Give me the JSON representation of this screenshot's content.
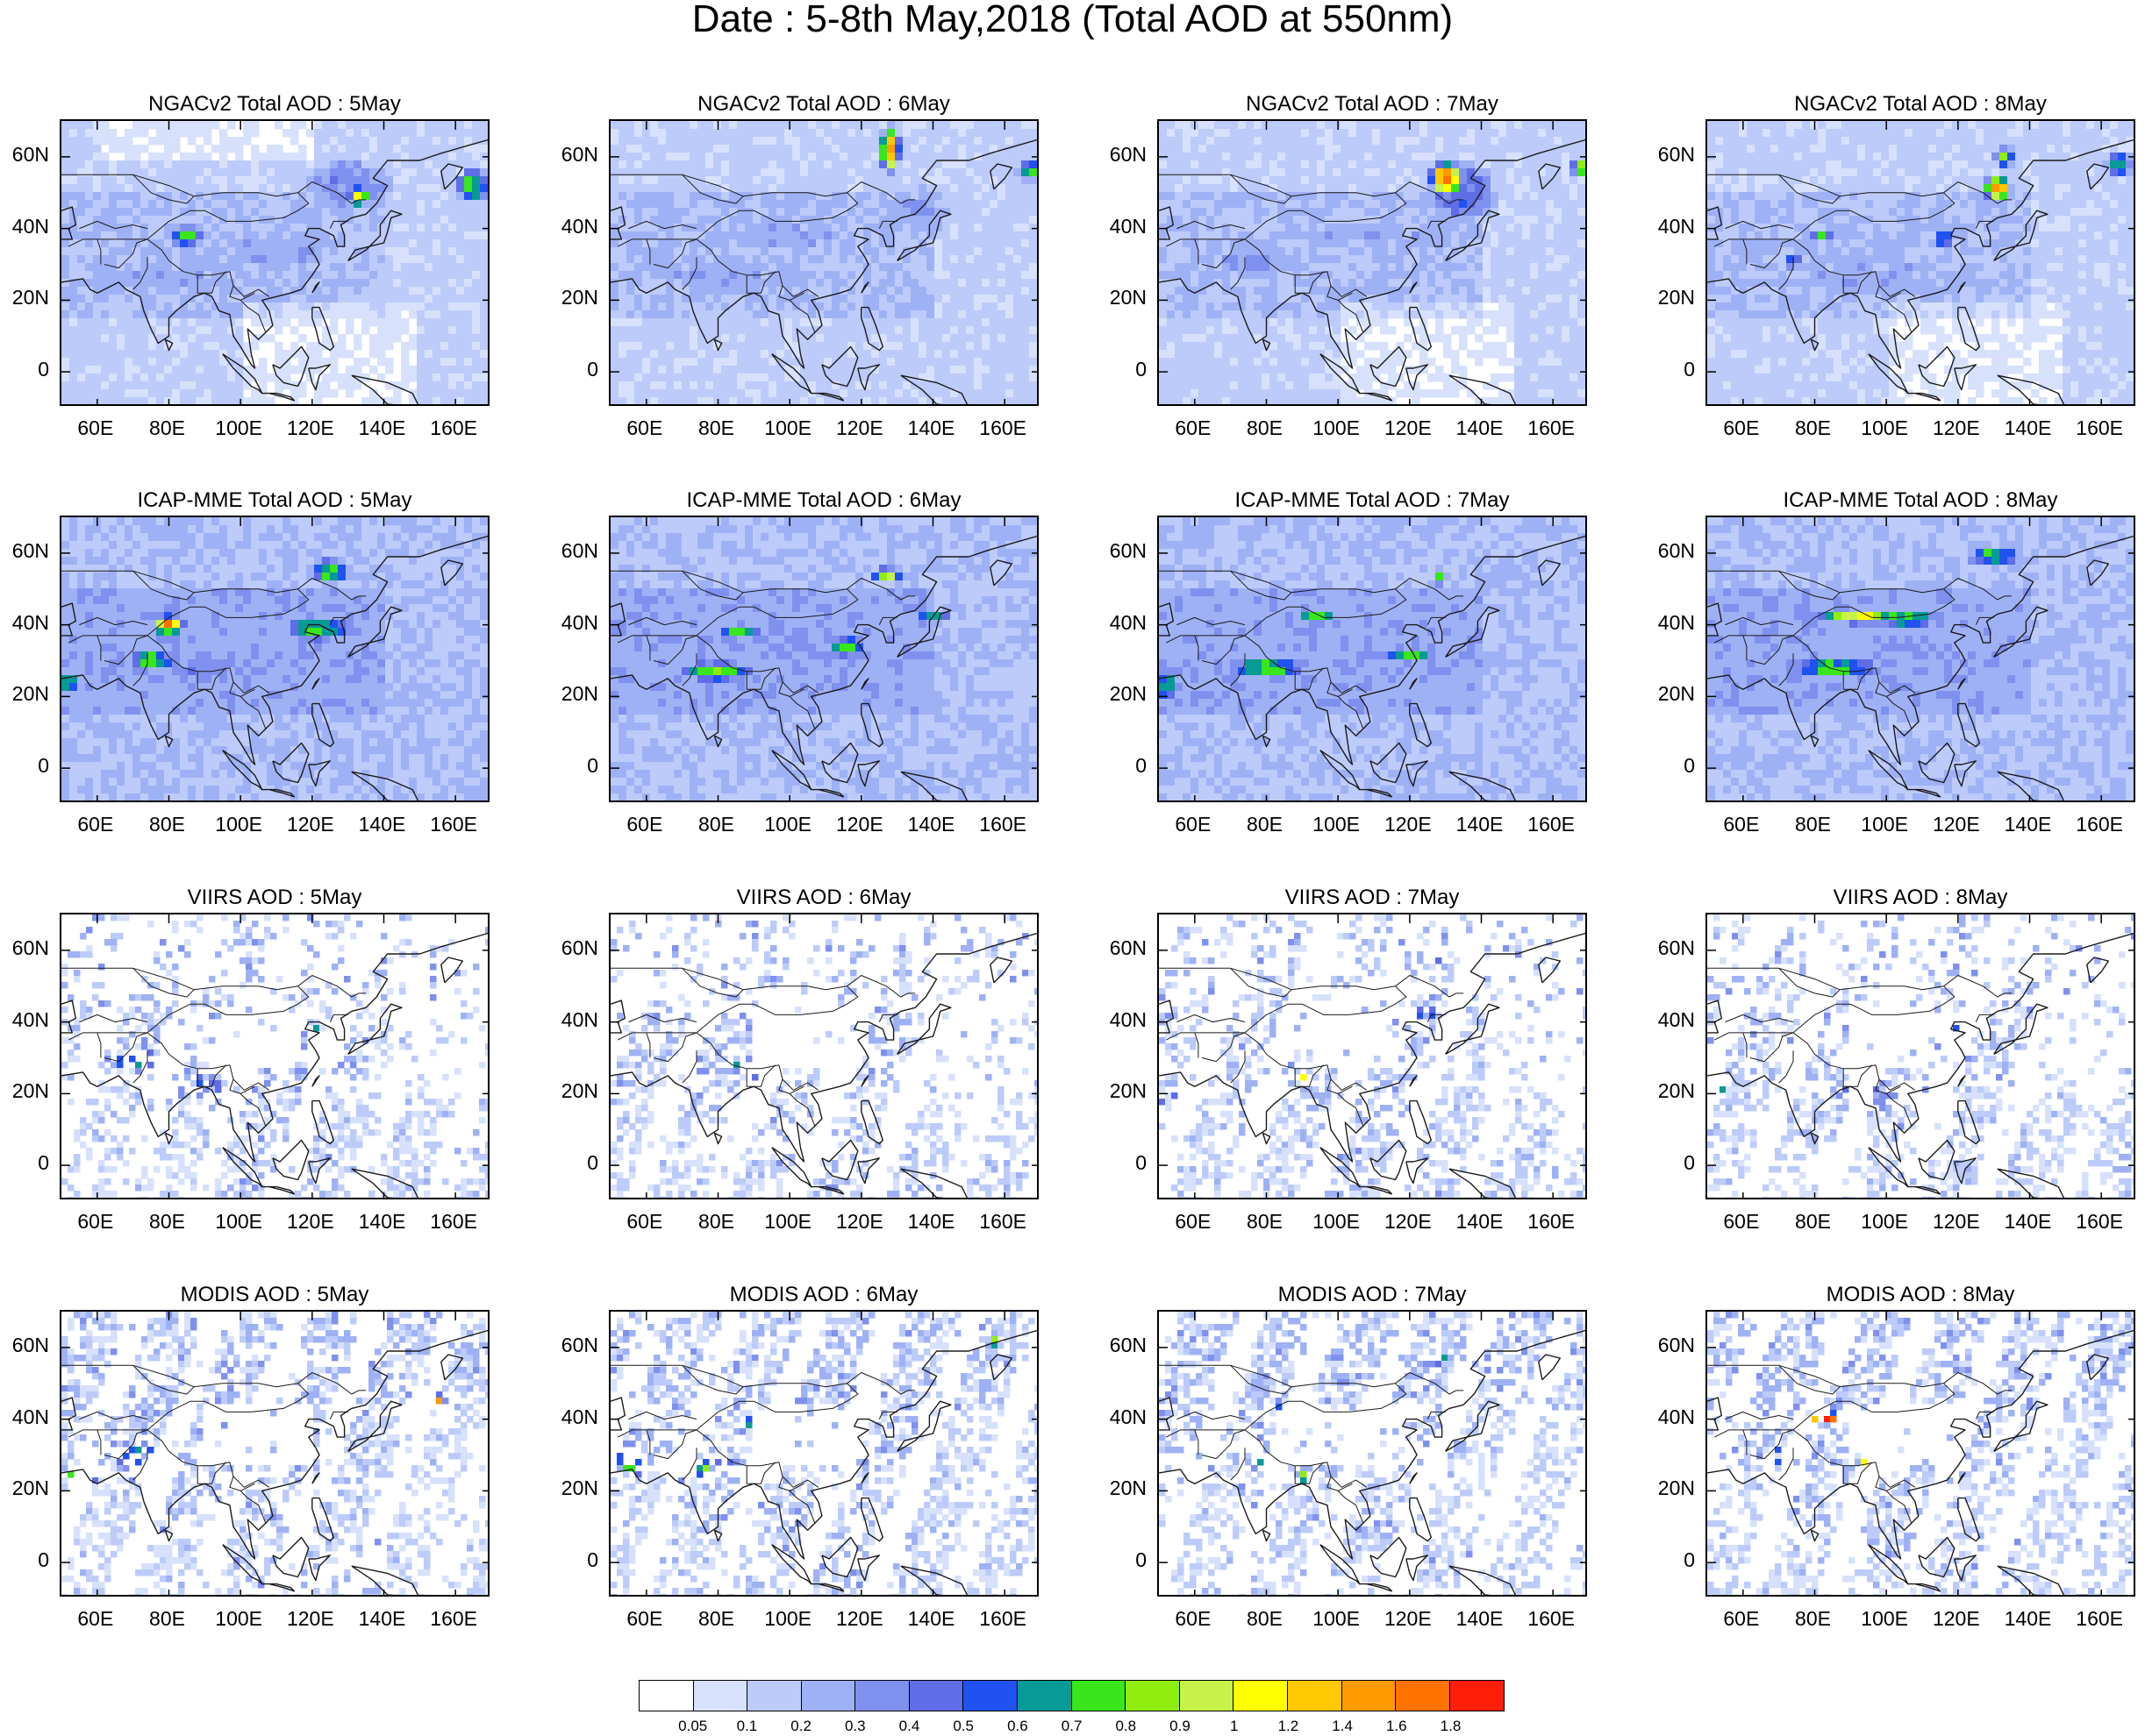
{
  "figure": {
    "title": "Date : 5-8th May,2018 (Total AOD at 550nm)"
  },
  "panel_titles": [
    [
      "NGACv2 Total AOD : 5May",
      "NGACv2 Total AOD : 6May",
      "NGACv2 Total AOD : 7May",
      "NGACv2 Total AOD : 8May"
    ],
    [
      "ICAP-MME Total AOD : 5May",
      "ICAP-MME Total AOD : 6May",
      "ICAP-MME Total AOD : 7May",
      "ICAP-MME Total AOD : 8May"
    ],
    [
      "VIIRS AOD : 5May",
      "VIIRS AOD : 6May",
      "VIIRS AOD : 7May",
      "VIIRS AOD : 8May"
    ],
    [
      "MODIS AOD : 5May",
      "MODIS AOD : 6May",
      "MODIS AOD : 7May",
      "MODIS AOD : 8May"
    ]
  ],
  "axes": {
    "lat_ticks": [
      "60N",
      "40N",
      "20N",
      "0"
    ],
    "lon_ticks": [
      "60E",
      "80E",
      "100E",
      "120E",
      "140E",
      "160E"
    ]
  },
  "colorbar": {
    "labels": [
      "0.05",
      "0.1",
      "0.2",
      "0.3",
      "0.4",
      "0.5",
      "0.6",
      "0.7",
      "0.8",
      "0.9",
      "1",
      "1.2",
      "1.4",
      "1.6",
      "1.8"
    ],
    "colors": [
      "#ffffff",
      "#d7e1fc",
      "#bccbf9",
      "#9fb1f5",
      "#7f90ee",
      "#5f6de6",
      "#1f52f0",
      "#079a96",
      "#38e61b",
      "#8fee10",
      "#c7f24a",
      "#ffff00",
      "#ffc800",
      "#ff9a00",
      "#ff7200",
      "#ff1e0a"
    ]
  }
}
